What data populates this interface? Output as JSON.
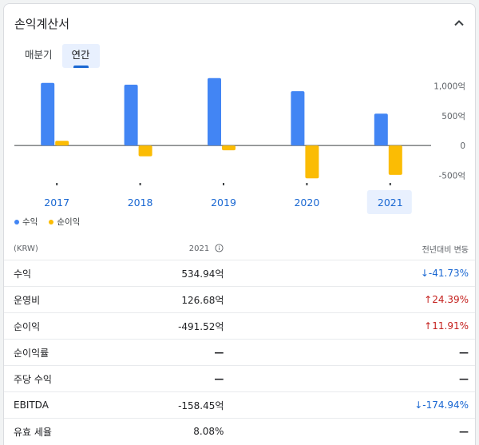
{
  "header": {
    "title": "손익계산서"
  },
  "tabs": [
    {
      "label": "매분기"
    },
    {
      "label": "연간",
      "active": true
    }
  ],
  "chart_data": {
    "type": "bar",
    "categories": [
      "2017",
      "2018",
      "2019",
      "2020",
      "2021"
    ],
    "selected_category": "2021",
    "series": [
      {
        "name": "수익",
        "color": "#4285f4",
        "values": [
          1050,
          1020,
          1130,
          910,
          535
        ]
      },
      {
        "name": "순이익",
        "color": "#fbbc04",
        "values": [
          80,
          -180,
          -80,
          -550,
          -492
        ]
      }
    ],
    "y_ticks": [
      {
        "value": 1000,
        "label": "1,000억"
      },
      {
        "value": 500,
        "label": "500억"
      },
      {
        "value": 0,
        "label": "0"
      },
      {
        "value": -500,
        "label": "-500억"
      }
    ],
    "ylim": [
      -560,
      1140
    ]
  },
  "table": {
    "header": {
      "unit": "(KRW)",
      "year": "2021",
      "change": "전년대비 변동"
    },
    "rows": [
      {
        "label": "수익",
        "value": "534.94억",
        "change": "-41.73%",
        "arrow": "↓",
        "dir": "down"
      },
      {
        "label": "운영비",
        "value": "126.68억",
        "change": "24.39%",
        "arrow": "↑",
        "dir": "up"
      },
      {
        "label": "순이익",
        "value": "-491.52억",
        "change": "11.91%",
        "arrow": "↑",
        "dir": "up"
      },
      {
        "label": "순이익률",
        "value": "—",
        "change": "—",
        "arrow": "",
        "dir": "neutral"
      },
      {
        "label": "주당 수익",
        "value": "—",
        "change": "—",
        "arrow": "",
        "dir": "neutral"
      },
      {
        "label": "EBITDA",
        "value": "-158.45억",
        "change": "-174.94%",
        "arrow": "↓",
        "dir": "down"
      },
      {
        "label": "유효 세율",
        "value": "8.08%",
        "change": "—",
        "arrow": "",
        "dir": "neutral"
      }
    ]
  }
}
